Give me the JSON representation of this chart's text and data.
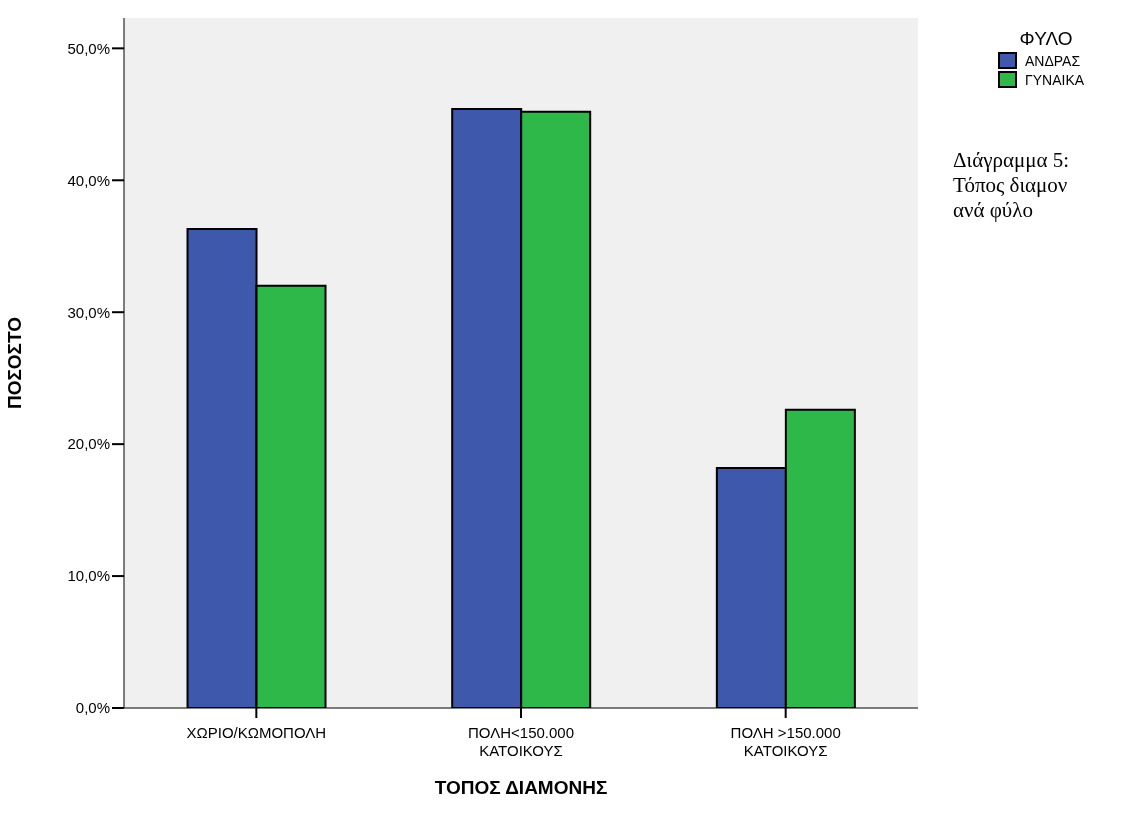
{
  "chart_data": {
    "type": "bar",
    "xlabel": "ΤΟΠΟΣ ΔΙΑΜΟΝΗΣ",
    "ylabel": "ΠΟΣΟΣΤΟ",
    "legend_title": "ΦΥΛΟ",
    "categories": [
      "ΧΩΡΙΟ/ΚΩΜΟΠΟΛΗ",
      "ΠΟΛΗ<150.000\nΚΑΤΟΙΚΟΥΣ",
      "ΠΟΛΗ >150.000\nΚΑΤΟΙΚΟΥΣ"
    ],
    "series": [
      {
        "name": "ΑΝΔΡΑΣ",
        "color": "#3e58ac",
        "values": [
          36.3,
          45.4,
          18.2
        ]
      },
      {
        "name": "ΓΥΝΑΙΚΑ",
        "color": "#2fb84a",
        "values": [
          32.0,
          45.2,
          22.6
        ]
      }
    ],
    "ylim": [
      0,
      52.3
    ],
    "yticks": [
      {
        "value": 0,
        "label": "0,0%"
      },
      {
        "value": 10,
        "label": "10,0%"
      },
      {
        "value": 20,
        "label": "20,0%"
      },
      {
        "value": 30,
        "label": "30,0%"
      },
      {
        "value": 40,
        "label": "40,0%"
      },
      {
        "value": 50,
        "label": "50,0%"
      }
    ],
    "grid": false,
    "legend": "top right",
    "annotations": [
      "Διάγραμμα 5:\nΤόπος διαμον\nανά φύλο"
    ]
  }
}
